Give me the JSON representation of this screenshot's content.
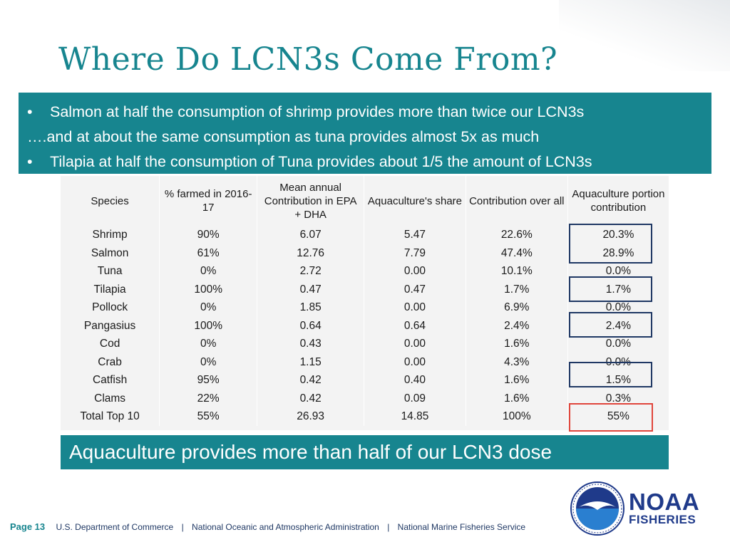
{
  "title": "Where Do LCN3s Come From?",
  "bullets": [
    {
      "bullet": "•",
      "text": "Salmon at half the consumption of shrimp provides more than twice our LCN3s"
    },
    {
      "bullet": "",
      "text": "….and at about the same consumption as tuna provides almost 5x as much"
    },
    {
      "bullet": "•",
      "text": "Tilapia at half the consumption of Tuna provides about 1/5 the amount of LCN3s"
    }
  ],
  "table": {
    "headers": [
      "Species",
      "% farmed in 2016-17",
      "Mean annual Contribution in EPA + DHA",
      "Aquaculture's share",
      "Contribution over all",
      "Aquaculture portion contribution"
    ],
    "rows": [
      [
        "Shrimp",
        "90%",
        "6.07",
        "5.47",
        "22.6%",
        "20.3%"
      ],
      [
        "Salmon",
        "61%",
        "12.76",
        "7.79",
        "47.4%",
        "28.9%"
      ],
      [
        "Tuna",
        "0%",
        "2.72",
        "0.00",
        "10.1%",
        "0.0%"
      ],
      [
        "Tilapia",
        "100%",
        "0.47",
        "0.47",
        "1.7%",
        "1.7%"
      ],
      [
        "Pollock",
        "0%",
        "1.85",
        "0.00",
        "6.9%",
        "0.0%"
      ],
      [
        "Pangasius",
        "100%",
        "0.64",
        "0.64",
        "2.4%",
        "2.4%"
      ],
      [
        "Cod",
        "0%",
        "0.43",
        "0.00",
        "1.6%",
        "0.0%"
      ],
      [
        "Crab",
        "0%",
        "1.15",
        "0.00",
        "4.3%",
        "0.0%"
      ],
      [
        "Catfish",
        "95%",
        "0.42",
        "0.40",
        "1.6%",
        "1.5%"
      ],
      [
        "Clams",
        "22%",
        "0.42",
        "0.09",
        "1.6%",
        "0.3%"
      ],
      [
        "Total Top 10",
        "55%",
        "26.93",
        "14.85",
        "100%",
        "55%"
      ]
    ]
  },
  "conclusion": "Aquaculture provides more than half of our LCN3 dose",
  "footer": {
    "page": "Page 13",
    "dept": "U.S. Department of Commerce",
    "separator": "|",
    "agency": "National Oceanic and Atmospheric Administration",
    "service": "National Marine Fisheries Service"
  },
  "logo": {
    "name": "NOAA",
    "sub": "FISHERIES"
  },
  "colors": {
    "teal": "#17858f",
    "navy": "#1f3864",
    "highlight_red": "#e0453b"
  }
}
